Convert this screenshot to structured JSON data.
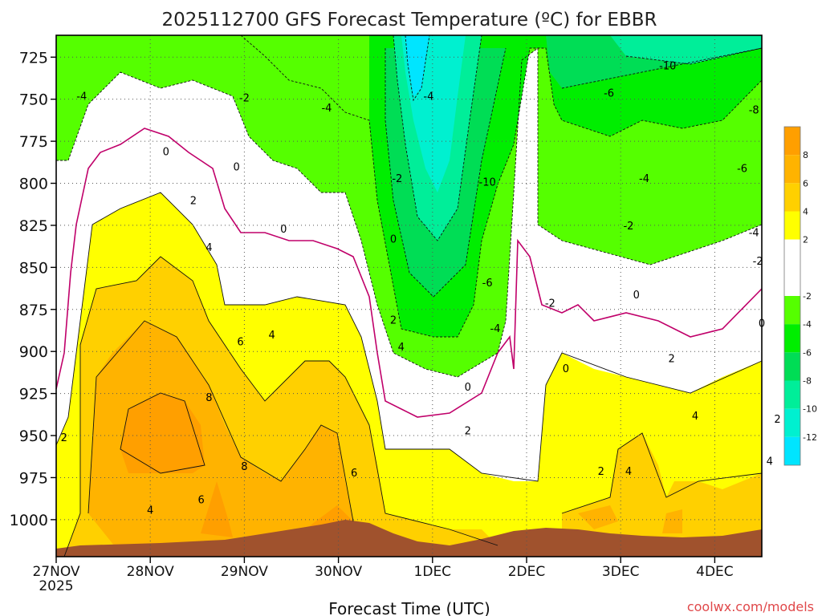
{
  "chart_data": {
    "type": "heatmap",
    "title": "2025112700 GFS Forecast Temperature (ºC) for EBBR",
    "xlabel": "Forecast Time (UTC)",
    "ylabel": "",
    "credit": "coolwx.com/models",
    "y_ticks": [
      725,
      750,
      775,
      800,
      825,
      850,
      875,
      900,
      925,
      950,
      975,
      1000
    ],
    "ylim": [
      712,
      1022
    ],
    "y_reversed": true,
    "x_ticks": [
      {
        "label": "27NOV",
        "sub": "2025",
        "hours": 0
      },
      {
        "label": "28NOV",
        "sub": "",
        "hours": 24
      },
      {
        "label": "29NOV",
        "sub": "",
        "hours": 48
      },
      {
        "label": "30NOV",
        "sub": "",
        "hours": 72
      },
      {
        "label": "1DEC",
        "sub": "",
        "hours": 96
      },
      {
        "label": "2DEC",
        "sub": "",
        "hours": 120
      },
      {
        "label": "3DEC",
        "sub": "",
        "hours": 144
      },
      {
        "label": "4DEC",
        "sub": "",
        "hours": 168
      }
    ],
    "xlim": [
      0,
      180
    ],
    "grid": true,
    "colorbar": {
      "placement": "right",
      "tick_labels": [
        "8",
        "6",
        "4",
        "2",
        "-2",
        "-4",
        "-6",
        "-8",
        "-10",
        "-12"
      ],
      "bands": [
        {
          "range": [
            8,
            10
          ],
          "color": "#ff9f00"
        },
        {
          "range": [
            6,
            8
          ],
          "color": "#ffb300"
        },
        {
          "range": [
            4,
            6
          ],
          "color": "#ffd000"
        },
        {
          "range": [
            2,
            4
          ],
          "color": "#ffff00"
        },
        {
          "range": [
            -2,
            2
          ],
          "color": "#ffffff"
        },
        {
          "range": [
            -4,
            -2
          ],
          "color": "#55ff00"
        },
        {
          "range": [
            -6,
            -4
          ],
          "color": "#00ee00"
        },
        {
          "range": [
            -8,
            -6
          ],
          "color": "#00dd55"
        },
        {
          "range": [
            -10,
            -8
          ],
          "color": "#00ee99"
        },
        {
          "range": [
            -12,
            -10
          ],
          "color": "#00f0d0"
        },
        {
          "range": [
            -14,
            -12
          ],
          "color": "#00e5ff"
        }
      ]
    },
    "ground_color": "#a0522d",
    "contour_labels": [
      {
        "text": "-4",
        "hours": 6.5,
        "p": 748
      },
      {
        "text": "-2",
        "hours": 48,
        "p": 749
      },
      {
        "text": "-4",
        "hours": 69,
        "p": 755
      },
      {
        "text": "-4",
        "hours": 95,
        "p": 748
      },
      {
        "text": "-6",
        "hours": 141,
        "p": 746
      },
      {
        "text": "-10",
        "hours": 156,
        "p": 730
      },
      {
        "text": "-8",
        "hours": 178,
        "p": 756
      },
      {
        "text": "-6",
        "hours": 175,
        "p": 791
      },
      {
        "text": "-4",
        "hours": 150,
        "p": 797
      },
      {
        "text": "-4",
        "hours": 178,
        "p": 829
      },
      {
        "text": "-2",
        "hours": 146,
        "p": 825
      },
      {
        "text": "-2",
        "hours": 179,
        "p": 846
      },
      {
        "text": "-2",
        "hours": 87,
        "p": 797
      },
      {
        "text": "-10",
        "hours": 110,
        "p": 799
      },
      {
        "text": "-6",
        "hours": 110,
        "p": 859
      },
      {
        "text": "-4",
        "hours": 112,
        "p": 886
      },
      {
        "text": "-2",
        "hours": 126,
        "p": 871
      },
      {
        "text": "0",
        "hours": 28,
        "p": 781
      },
      {
        "text": "0",
        "hours": 46,
        "p": 790
      },
      {
        "text": "0",
        "hours": 58,
        "p": 827
      },
      {
        "text": "0",
        "hours": 86,
        "p": 833
      },
      {
        "text": "0",
        "hours": 148,
        "p": 866
      },
      {
        "text": "0",
        "hours": 180,
        "p": 883
      },
      {
        "text": "0",
        "hours": 130,
        "p": 910
      },
      {
        "text": "0",
        "hours": 105,
        "p": 921
      },
      {
        "text": "2",
        "hours": 35,
        "p": 810
      },
      {
        "text": "2",
        "hours": 86,
        "p": 881
      },
      {
        "text": "2",
        "hours": 2,
        "p": 951
      },
      {
        "text": "2",
        "hours": 105,
        "p": 947
      },
      {
        "text": "2",
        "hours": 157,
        "p": 904
      },
      {
        "text": "2",
        "hours": 184,
        "p": 940
      },
      {
        "text": "2",
        "hours": 139,
        "p": 971
      },
      {
        "text": "4",
        "hours": 39,
        "p": 838
      },
      {
        "text": "4",
        "hours": 55,
        "p": 890
      },
      {
        "text": "4",
        "hours": 88,
        "p": 897
      },
      {
        "text": "4",
        "hours": 24,
        "p": 994
      },
      {
        "text": "4",
        "hours": 146,
        "p": 971
      },
      {
        "text": "4",
        "hours": 163,
        "p": 938
      },
      {
        "text": "4",
        "hours": 182,
        "p": 965
      },
      {
        "text": "6",
        "hours": 47,
        "p": 894
      },
      {
        "text": "6",
        "hours": 76,
        "p": 972
      },
      {
        "text": "6",
        "hours": 37,
        "p": 988
      },
      {
        "text": "8",
        "hours": 39,
        "p": 927
      },
      {
        "text": "8",
        "hours": 48,
        "p": 968
      }
    ]
  }
}
